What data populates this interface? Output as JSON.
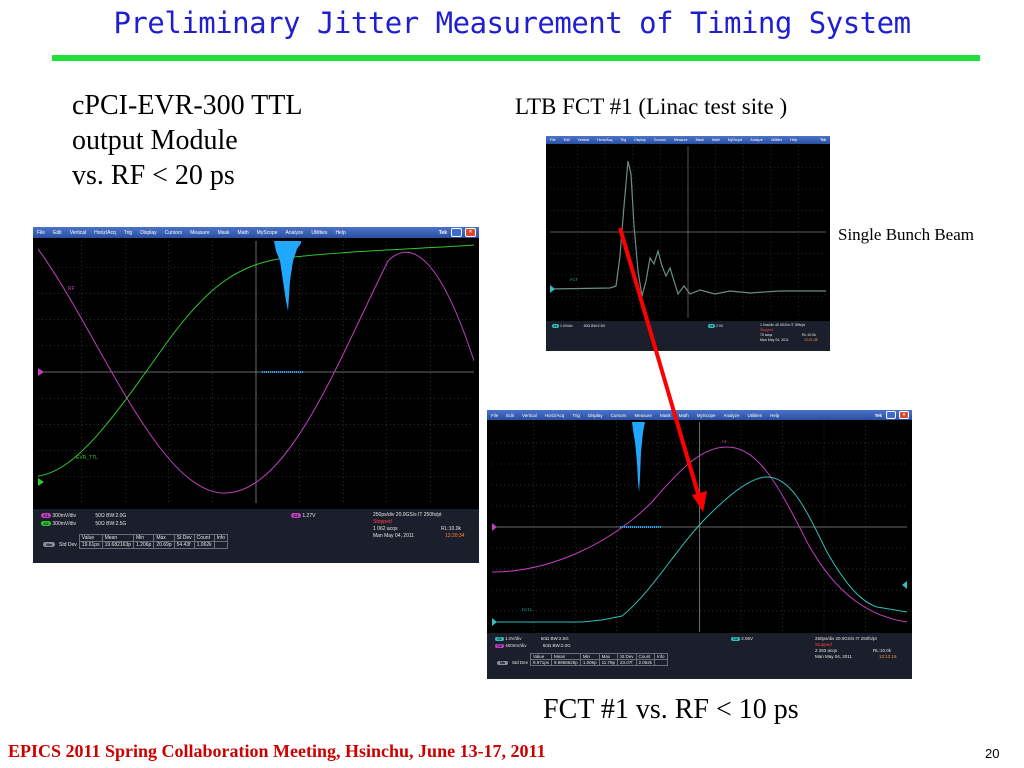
{
  "slide": {
    "title": "Preliminary Jitter Measurement of Timing System",
    "left_caption": [
      "cPCI-EVR-300 TTL",
      "output Module",
      "vs. RF  < 20 ps"
    ],
    "right_caption": "LTB FCT #1 (Linac test site )",
    "beam_label": "Single Bunch Beam",
    "bottom_caption": "FCT #1  vs. RF  <  10 ps",
    "footer": "EPICS 2011 Spring Collaboration Meeting, Hsinchu, June 13-17, 2011",
    "page_number": "20"
  },
  "colors": {
    "title": "#1f1fd0",
    "rule": "#22e03a",
    "footer": "#cc0000",
    "arrow": "#ff0000",
    "rf_trace": "#c040c0",
    "ttl_trace": "#30c830",
    "fct_trace": "#30c0c0",
    "histogram": "#20a8ff",
    "grid": "#6a6a6a"
  },
  "scope_left": {
    "menu": [
      "File",
      "Edit",
      "Vertical",
      "Horiz/Acq",
      "Trig",
      "Display",
      "Cursors",
      "Measure",
      "Mask",
      "Math",
      "MyScope",
      "Analyze",
      "Utilities",
      "Help"
    ],
    "brand": "Tek",
    "trace_labels": {
      "rf": "RF",
      "ttl": "EVR_TTL"
    },
    "channels": [
      {
        "tag": "C1",
        "scale": "300mV/div",
        "imp": "50Ω",
        "bw": "BW:2.0G"
      },
      {
        "tag": "C2",
        "scale": "300mV/div",
        "imp": "50Ω",
        "bw": "BW:2.5G"
      }
    ],
    "trigger": {
      "tag": "C1",
      "level": "1.27V"
    },
    "acq": {
      "timebase": "250ps/div  20.0GS/s  IT   250fs/pt",
      "status": "Stopped",
      "acqs": "1 062 acqs",
      "rl": "RL:10.0k",
      "date": "Man    May 04, 2011",
      "time": "13:20:34"
    },
    "meas_header": [
      "Value",
      "Mean",
      "Min",
      "Max",
      "St Dev",
      "Count",
      "Info"
    ],
    "meas_row": {
      "tag": "Ma",
      "name": "Std Dev",
      "cells": [
        "19.61ps",
        "19.682163p",
        "1.206p",
        "20.69p",
        "54.43f",
        "1.062k",
        ""
      ]
    }
  },
  "scope_top_right": {
    "menu": [
      "File",
      "Edit",
      "Vertical",
      "Horiz/Acq",
      "Trig",
      "Display",
      "Cursors",
      "Measure",
      "Mask",
      "Math",
      "MyScope",
      "Analyze",
      "Utilities",
      "Help"
    ],
    "brand": "Tek",
    "trace_label": "FCT",
    "channel": {
      "tag": "C1",
      "scale": "1.0V/div",
      "imp": "50Ω",
      "bw": "BW:2.5G"
    },
    "trigger": {
      "tag": "C2",
      "level": "2.0V"
    },
    "acq": {
      "timebase": "1.0ns/div  40.0GS/s  IT  25fs/pt",
      "status": "Stopped",
      "acqs": "75 acqs",
      "rl": "RL:10.0k",
      "date": "Man    May 04, 2011",
      "time": "12:01:08"
    }
  },
  "scope_bottom_right": {
    "menu": [
      "File",
      "Edit",
      "Vertical",
      "Horiz/Acq",
      "Trig",
      "Display",
      "Cursors",
      "Measure",
      "Mask",
      "Math",
      "MyScope",
      "Analyze",
      "Utilities",
      "Help"
    ],
    "brand": "Tek",
    "trace_labels": {
      "rf": "RF",
      "fct": "FCT1"
    },
    "channels": [
      {
        "tag": "C1",
        "scale": "1.0V/div",
        "imp": "50Ω",
        "bw": "BW:2.5G"
      },
      {
        "tag": "C2",
        "scale": "400mV/div",
        "imp": "50Ω",
        "bw": "BW:2.0G"
      }
    ],
    "trigger": {
      "tag": "C2",
      "level": "2.06V"
    },
    "acq": {
      "timebase": "250ps/div  20.0GS/s  IT   250fs/pt",
      "status": "Stopped",
      "acqs": "2 283 acqs",
      "rl": "RL:10.0k",
      "date": "Man    May 04, 2011",
      "time": "13:12:16"
    },
    "meas_header": [
      "Value",
      "Mean",
      "Min",
      "Max",
      "St Dev",
      "Count",
      "Info"
    ],
    "meas_row": {
      "tag": "Ma",
      "name": "Std Dev",
      "cells": [
        "9.971ps",
        "9.9868625p",
        "1.006p",
        "11.79p",
        "23.07f",
        "2.062k",
        ""
      ]
    }
  }
}
